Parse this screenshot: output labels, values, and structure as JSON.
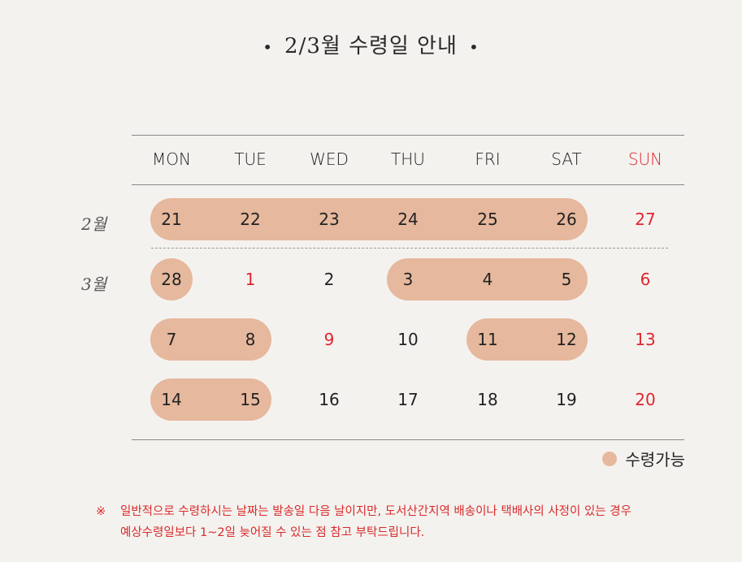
{
  "title": {
    "dot_left": "•",
    "text": "2/3월 수령일 안내",
    "dot_right": "•"
  },
  "headers": [
    "MON",
    "TUE",
    "WED",
    "THU",
    "FRI",
    "SAT",
    "SUN"
  ],
  "months": [
    "2월",
    "3월"
  ],
  "rows": [
    [
      "21",
      "22",
      "23",
      "24",
      "25",
      "26",
      "27"
    ],
    [
      "28",
      "1",
      "2",
      "3",
      "4",
      "5",
      "6"
    ],
    [
      "7",
      "8",
      "9",
      "10",
      "11",
      "12",
      "13"
    ],
    [
      "14",
      "15",
      "16",
      "17",
      "18",
      "19",
      "20"
    ]
  ],
  "red_cells": [
    "0-6",
    "1-1",
    "1-6",
    "2-2",
    "2-6",
    "3-6"
  ],
  "available_ranges": [
    {
      "row": 0,
      "from": 0,
      "to": 5
    },
    {
      "row": 1,
      "from": 0,
      "to": 0
    },
    {
      "row": 1,
      "from": 3,
      "to": 5
    },
    {
      "row": 2,
      "from": 0,
      "to": 1
    },
    {
      "row": 2,
      "from": 4,
      "to": 5
    },
    {
      "row": 3,
      "from": 0,
      "to": 1
    }
  ],
  "legend": {
    "label": "수령가능"
  },
  "note": {
    "mark": "※",
    "line1": "일반적으로 수령하시는 날짜는 발송일 다음 날이지만, 도서산간지역 배송이나 택배사의 사정이 있는 경우",
    "line2": "예상수령일보다 1~2일 늦어질 수 있는 점 참고 부탁드립니다."
  },
  "colors": {
    "pill": "#e6b89d",
    "red": "#e0252f",
    "background": "#f4f2ef"
  }
}
